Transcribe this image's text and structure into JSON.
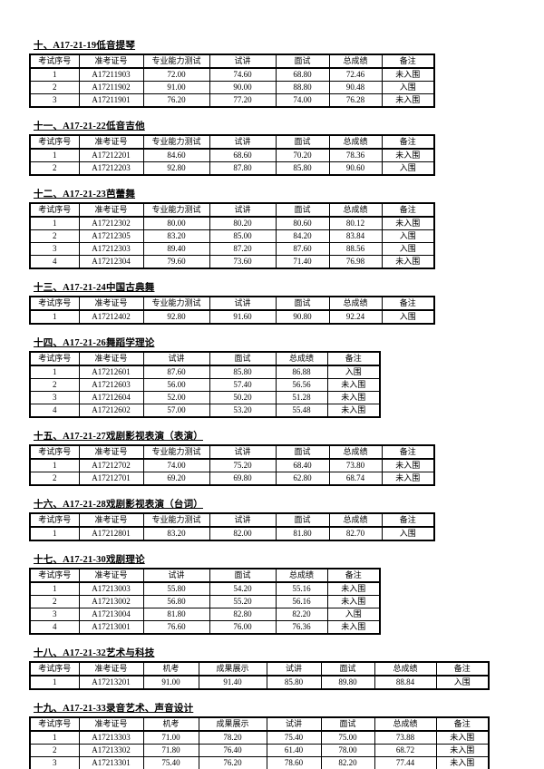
{
  "page": {
    "background_color": "#ffffff",
    "text_color": "#000000",
    "border_color": "#000000"
  },
  "sections": [
    {
      "title": "十、A17-21-19低音提琴",
      "columns": [
        "考试序号",
        "准考证号",
        "专业能力测试",
        "试讲",
        "面试",
        "总成绩",
        "备注"
      ],
      "rows": [
        [
          "1",
          "A17211903",
          "72.00",
          "74.60",
          "68.80",
          "72.46",
          "未入围"
        ],
        [
          "2",
          "A17211902",
          "91.00",
          "90.00",
          "88.80",
          "90.48",
          "入围"
        ],
        [
          "3",
          "A17211901",
          "76.20",
          "77.20",
          "74.00",
          "76.28",
          "未入围"
        ]
      ]
    },
    {
      "title": "十一、A17-21-22低音吉他",
      "columns": [
        "考试序号",
        "准考证号",
        "专业能力测试",
        "试讲",
        "面试",
        "总成绩",
        "备注"
      ],
      "rows": [
        [
          "1",
          "A17212201",
          "84.60",
          "68.60",
          "70.20",
          "78.36",
          "未入围"
        ],
        [
          "2",
          "A17212203",
          "92.80",
          "87.80",
          "85.80",
          "90.60",
          "入围"
        ]
      ]
    },
    {
      "title": "十二、A17-21-23芭蕾舞",
      "columns": [
        "考试序号",
        "准考证号",
        "专业能力测试",
        "试讲",
        "面试",
        "总成绩",
        "备注"
      ],
      "rows": [
        [
          "1",
          "A17212302",
          "80.00",
          "80.20",
          "80.60",
          "80.12",
          "未入围"
        ],
        [
          "2",
          "A17212305",
          "83.20",
          "85.00",
          "84.20",
          "83.84",
          "入围"
        ],
        [
          "3",
          "A17212303",
          "89.40",
          "87.20",
          "87.60",
          "88.56",
          "入围"
        ],
        [
          "4",
          "A17212304",
          "79.60",
          "73.60",
          "71.40",
          "76.98",
          "未入围"
        ]
      ]
    },
    {
      "title": "十三、A17-21-24中国古典舞",
      "columns": [
        "考试序号",
        "准考证号",
        "专业能力测试",
        "试讲",
        "面试",
        "总成绩",
        "备注"
      ],
      "rows": [
        [
          "1",
          "A17212402",
          "92.80",
          "91.60",
          "90.80",
          "92.24",
          "入围"
        ]
      ]
    },
    {
      "title": "十四、A17-21-26舞蹈学理论",
      "columns": [
        "考试序号",
        "准考证号",
        "试讲",
        "面试",
        "总成绩",
        "备注"
      ],
      "rows": [
        [
          "1",
          "A17212601",
          "87.60",
          "85.80",
          "86.88",
          "入围"
        ],
        [
          "2",
          "A17212603",
          "56.00",
          "57.40",
          "56.56",
          "未入围"
        ],
        [
          "3",
          "A17212604",
          "52.00",
          "50.20",
          "51.28",
          "未入围"
        ],
        [
          "4",
          "A17212602",
          "57.00",
          "53.20",
          "55.48",
          "未入围"
        ]
      ]
    },
    {
      "title": "十五、A17-21-27戏剧影视表演（表演）",
      "columns": [
        "考试序号",
        "准考证号",
        "专业能力测试",
        "试讲",
        "面试",
        "总成绩",
        "备注"
      ],
      "rows": [
        [
          "1",
          "A17212702",
          "74.00",
          "75.20",
          "68.40",
          "73.80",
          "未入围"
        ],
        [
          "2",
          "A17212701",
          "69.20",
          "69.80",
          "62.80",
          "68.74",
          "未入围"
        ]
      ]
    },
    {
      "title": "十六、A17-21-28戏剧影视表演（台词）",
      "columns": [
        "考试序号",
        "准考证号",
        "专业能力测试",
        "试讲",
        "面试",
        "总成绩",
        "备注"
      ],
      "rows": [
        [
          "1",
          "A17212801",
          "83.20",
          "82.00",
          "81.80",
          "82.70",
          "入围"
        ]
      ]
    },
    {
      "title": "十七、A17-21-30戏剧理论",
      "columns": [
        "考试序号",
        "准考证号",
        "试讲",
        "面试",
        "总成绩",
        "备注"
      ],
      "rows": [
        [
          "1",
          "A17213003",
          "55.80",
          "54.20",
          "55.16",
          "未入围"
        ],
        [
          "2",
          "A17213002",
          "56.80",
          "55.20",
          "56.16",
          "未入围"
        ],
        [
          "3",
          "A17213004",
          "81.80",
          "82.80",
          "82.20",
          "入围"
        ],
        [
          "4",
          "A17213001",
          "76.60",
          "76.00",
          "76.36",
          "未入围"
        ]
      ]
    },
    {
      "title": "十八、A17-21-32艺术与科技",
      "columns": [
        "考试序号",
        "准考证号",
        "机考",
        "成果展示",
        "试讲",
        "面试",
        "总成绩",
        "备注"
      ],
      "rows": [
        [
          "1",
          "A17213201",
          "91.00",
          "91.40",
          "85.80",
          "89.80",
          "88.84",
          "入围"
        ]
      ]
    },
    {
      "title": "十九、A17-21-33录音艺术、声音设计",
      "columns": [
        "考试序号",
        "准考证号",
        "机考",
        "成果展示",
        "试讲",
        "面试",
        "总成绩",
        "备注"
      ],
      "rows": [
        [
          "1",
          "A17213303",
          "71.00",
          "78.20",
          "75.40",
          "75.00",
          "73.88",
          "未入围"
        ],
        [
          "2",
          "A17213302",
          "71.80",
          "76.40",
          "61.40",
          "78.00",
          "68.72",
          "未入围"
        ],
        [
          "3",
          "A17213301",
          "75.40",
          "76.20",
          "78.60",
          "82.20",
          "77.44",
          "未入围"
        ]
      ]
    }
  ]
}
